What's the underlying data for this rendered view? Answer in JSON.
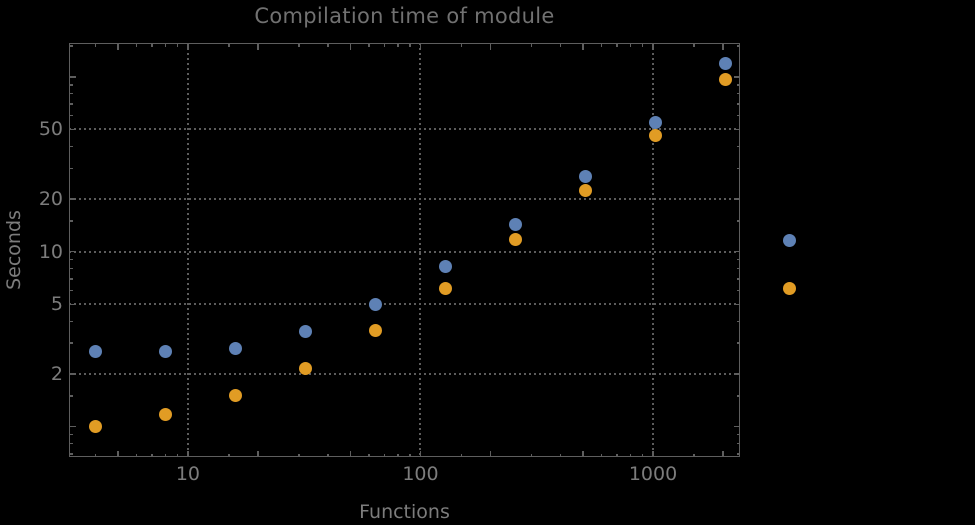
{
  "chart_data": {
    "type": "scatter",
    "title": "Compilation time of module",
    "xlabel": "Functions",
    "ylabel": "Seconds",
    "xscale": "log",
    "yscale": "log",
    "xlim": [
      3.08,
      2366
    ],
    "ylim": [
      0.671,
      156
    ],
    "grid": "dotted",
    "x": [
      4,
      8,
      16,
      32,
      64,
      128,
      256,
      512,
      1024,
      2048
    ],
    "series": [
      {
        "name": "series-1-blue",
        "color": "#5e81b5",
        "values": [
          2.7,
          2.7,
          2.8,
          3.5,
          5.0,
          8.2,
          14.3,
          26.8,
          55,
          119
        ]
      },
      {
        "name": "series-2-orange",
        "color": "#e19c24",
        "values": [
          1.0,
          1.17,
          1.5,
          2.15,
          3.55,
          6.2,
          11.8,
          22.3,
          46,
          96.5
        ]
      }
    ],
    "x_axis": {
      "labeled_ticks": [
        10,
        100,
        1000
      ],
      "major_ticks": [
        5,
        20,
        50,
        200,
        500,
        2000
      ],
      "minor_ticks": [
        4,
        6,
        7,
        8,
        9,
        15,
        30,
        40,
        60,
        70,
        80,
        90,
        150,
        300,
        400,
        600,
        700,
        800,
        900,
        1500
      ],
      "gridlines": [
        10,
        100,
        1000
      ]
    },
    "y_axis": {
      "labeled_ticks": [
        2,
        5,
        10,
        20,
        50
      ],
      "major_ticks": [
        1,
        100
      ],
      "minor_ticks": [
        0.7,
        0.8,
        0.9,
        1.5,
        3,
        4,
        6,
        7,
        8,
        9,
        15,
        30,
        40,
        60,
        70,
        80,
        90,
        150
      ],
      "gridlines": [
        2,
        5,
        10,
        20,
        50
      ]
    },
    "legend": {
      "position": "outside-right",
      "items": [
        {
          "label": "",
          "series": 0
        },
        {
          "label": "",
          "series": 1
        }
      ]
    },
    "colors": {
      "background": "#000000",
      "frame": "#5e5e5e",
      "gridline": "#5c5c5c",
      "text": "#7c7c7c",
      "title_text": "#717171"
    }
  }
}
